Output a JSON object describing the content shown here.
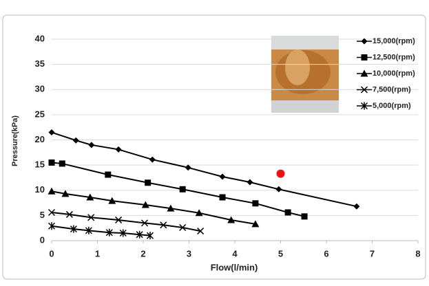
{
  "chart_data": {
    "type": "line",
    "x_label": "Flow(l/min)",
    "y_label": "Pressure(kPa)",
    "xlim": [
      0,
      8
    ],
    "xticks": [
      0,
      1,
      2,
      3,
      4,
      5,
      6,
      7,
      8
    ],
    "ylim": [
      0,
      40
    ],
    "yticks": [
      0,
      5,
      10,
      15,
      20,
      25,
      30,
      35,
      40
    ],
    "grid": true,
    "legend": "top-right",
    "series": [
      {
        "name": "15,000(rpm)",
        "color": "#000000",
        "marker": "diamond",
        "x": [
          0,
          0.53,
          0.87,
          1.46,
          2.2,
          2.98,
          3.73,
          4.33,
          4.96,
          6.66
        ],
        "values": [
          21.5,
          19.9,
          19.0,
          18.1,
          16.1,
          14.5,
          12.7,
          11.6,
          10.2,
          6.8
        ]
      },
      {
        "name": "12,500(rpm)",
        "color": "#000000",
        "marker": "square",
        "x": [
          0,
          0.23,
          1.23,
          2.1,
          2.86,
          3.73,
          4.45,
          5.16,
          5.52
        ],
        "values": [
          15.5,
          15.3,
          13.1,
          11.5,
          10.2,
          8.6,
          7.4,
          5.6,
          4.8
        ]
      },
      {
        "name": "10,000(rpm)",
        "color": "#000000",
        "marker": "triangle",
        "x": [
          0,
          0.3,
          0.84,
          1.32,
          2.05,
          2.6,
          3.22,
          3.92,
          4.45
        ],
        "values": [
          9.8,
          9.3,
          8.6,
          7.9,
          7.1,
          6.4,
          5.5,
          4.1,
          3.3
        ]
      },
      {
        "name": "7,500(rpm)",
        "color": "#000000",
        "marker": "x",
        "x": [
          0,
          0.39,
          0.86,
          1.46,
          2.03,
          2.44,
          2.86,
          3.25
        ],
        "values": [
          5.6,
          5.2,
          4.6,
          4.1,
          3.5,
          3.1,
          2.6,
          1.9
        ]
      },
      {
        "name": "5,000(rpm)",
        "color": "#000000",
        "marker": "star",
        "x": [
          0,
          0.48,
          0.81,
          1.26,
          1.56,
          1.92,
          2.15
        ],
        "values": [
          2.9,
          2.3,
          2.0,
          1.6,
          1.5,
          1.2,
          1.0
        ]
      }
    ],
    "highlight": {
      "x": 5.0,
      "y": 13.3,
      "color": "#ee1111"
    }
  }
}
